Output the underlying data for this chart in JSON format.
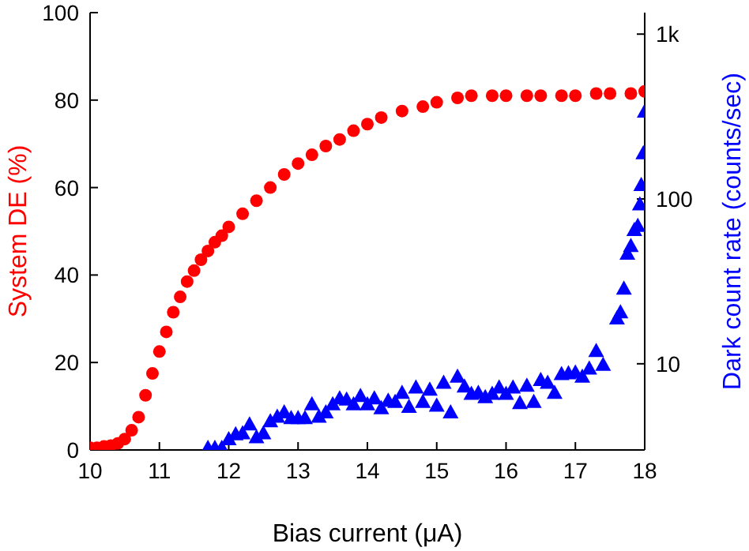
{
  "chart_data": {
    "type": "scatter",
    "xlabel": "Bias current (μA)",
    "ylabel": "System DE (%)",
    "y2label": "Dark count rate (counts/sec)",
    "xlim": [
      10,
      18
    ],
    "xticks": [
      10,
      11,
      12,
      13,
      14,
      15,
      16,
      17,
      18
    ],
    "ylim": [
      0,
      100
    ],
    "yticks": [
      0,
      20,
      40,
      60,
      80,
      100
    ],
    "y2lim": [
      3,
      1350
    ],
    "y2ticks": [
      10,
      100,
      {
        "value": 1000,
        "label": "1k"
      }
    ],
    "log": "y2",
    "grid": false,
    "legend": false,
    "series": [
      {
        "color": "#ff0000",
        "marker": "circle",
        "x": [
          10,
          10.1,
          10.2,
          10.3,
          10.4,
          10.5,
          10.6,
          10.7,
          10.8,
          10.9,
          11,
          11.1,
          11.2,
          11.3,
          11.4,
          11.5,
          11.6,
          11.7,
          11.8,
          11.9,
          12,
          12.2,
          12.4,
          12.6,
          12.8,
          13,
          13.2,
          13.4,
          13.6,
          13.8,
          14,
          14.2,
          14.5,
          14.8,
          15,
          15.3,
          15.5,
          15.8,
          16,
          16.3,
          16.5,
          16.8,
          17,
          17.3,
          17.5,
          17.8,
          18
        ],
        "values": [
          0.5,
          0.5,
          0.8,
          1,
          1.5,
          2.5,
          4.5,
          7.5,
          12.5,
          17.5,
          22.5,
          27,
          31.5,
          35,
          38.5,
          41,
          43.5,
          45.5,
          47.5,
          49,
          51,
          54,
          57,
          60,
          63,
          65.5,
          67.5,
          69.5,
          71,
          73,
          74.5,
          76,
          77.5,
          78.5,
          79.5,
          80.5,
          81,
          81,
          81,
          81,
          81,
          81,
          81,
          81.5,
          81.5,
          81.5,
          82
        ]
      },
      {
        "color": "#0000ff",
        "marker": "triangle",
        "axis": "y2",
        "x": [
          11.7,
          11.8,
          11.9,
          12,
          12.1,
          12.2,
          12.3,
          12.4,
          12.5,
          12.6,
          12.7,
          12.8,
          12.9,
          13,
          13.1,
          13.2,
          13.3,
          13.4,
          13.5,
          13.6,
          13.7,
          13.8,
          13.9,
          14,
          14.1,
          14.2,
          14.3,
          14.4,
          14.5,
          14.6,
          14.7,
          14.8,
          14.9,
          15,
          15.1,
          15.2,
          15.3,
          15.4,
          15.5,
          15.6,
          15.7,
          15.8,
          15.9,
          16,
          16.1,
          16.2,
          16.3,
          16.4,
          16.5,
          16.6,
          16.7,
          16.8,
          16.9,
          17,
          17.1,
          17.2,
          17.3,
          17.4,
          17.6,
          17.65,
          17.7,
          17.75,
          17.8,
          17.85,
          17.9,
          17.93,
          17.95,
          17.98,
          18
        ],
        "values": [
          3.1,
          3.1,
          3.1,
          3.5,
          3.75,
          3.8,
          4.3,
          3.6,
          3.8,
          4.5,
          4.8,
          5.1,
          4.7,
          4.7,
          4.7,
          5.7,
          4.8,
          5.1,
          5.7,
          6.2,
          6.1,
          5.7,
          6.4,
          5.7,
          6.2,
          5.4,
          6,
          5.9,
          6.7,
          5.5,
          7.2,
          5.9,
          7,
          5.6,
          7.7,
          5.1,
          8.4,
          7.3,
          6.6,
          6.7,
          6.3,
          6.6,
          7.2,
          6.6,
          7.2,
          5.8,
          7.4,
          5.9,
          8,
          7.7,
          6.7,
          8.7,
          8.8,
          8.9,
          8.4,
          9.4,
          12,
          9.9,
          18.9,
          20.6,
          28.7,
          46.7,
          52,
          65,
          69,
          93,
          122,
          190,
          340
        ]
      }
    ]
  }
}
